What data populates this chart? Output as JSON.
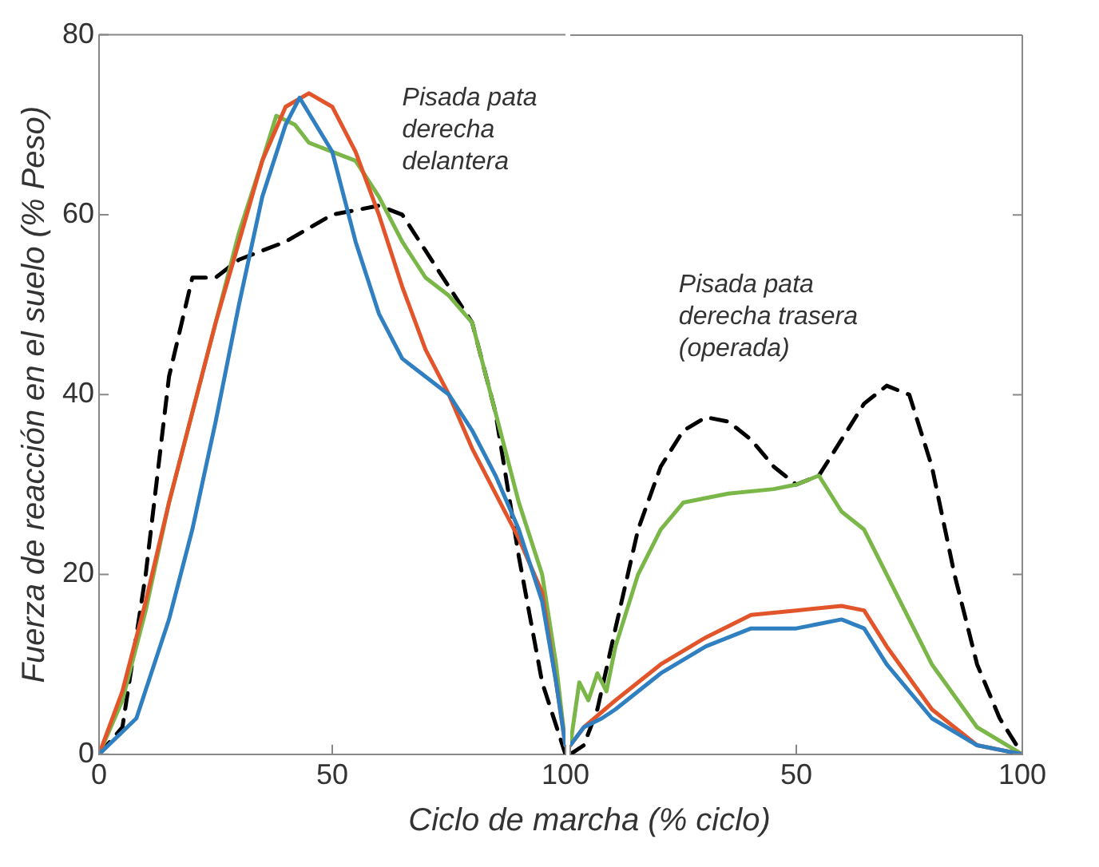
{
  "chart_data": [
    {
      "type": "line",
      "xlabel": "Ciclo de marcha (% ciclo)",
      "ylabel": "Fuerza de reacción en el suelo (% Peso)",
      "xlim": [
        0,
        100
      ],
      "xticks": [
        0,
        50,
        100
      ],
      "ylim": [
        0,
        80
      ],
      "yticks": [
        0,
        20,
        40,
        60,
        80
      ],
      "grid": false,
      "legend": false,
      "marker": "none",
      "annotations": [
        "Pisada pata derecha delantera"
      ],
      "series": [
        {
          "color": "#2f7fc1",
          "line_style": "solid",
          "x": [
            0,
            8,
            15,
            20,
            25,
            30,
            35,
            40,
            43,
            50,
            55,
            60,
            65,
            70,
            75,
            80,
            85,
            90,
            95,
            98,
            100
          ],
          "values": [
            0,
            4,
            15,
            25,
            37,
            50,
            62,
            70,
            73,
            67,
            57,
            49,
            44,
            42,
            40,
            36,
            31,
            25,
            17,
            8,
            1
          ]
        },
        {
          "color": "#e2542a",
          "line_style": "solid",
          "x": [
            0,
            5,
            10,
            15,
            20,
            25,
            30,
            35,
            40,
            45,
            50,
            55,
            60,
            65,
            70,
            75,
            80,
            85,
            90,
            95,
            98,
            100
          ],
          "values": [
            0,
            7,
            17,
            28,
            38,
            48,
            57,
            66,
            72,
            73.5,
            72,
            67,
            60,
            52,
            45,
            40,
            34,
            29,
            24,
            18,
            8,
            1
          ]
        },
        {
          "color": "#7ab648",
          "line_style": "solid",
          "x": [
            0,
            5,
            10,
            15,
            20,
            25,
            30,
            35,
            38,
            42,
            45,
            50,
            55,
            60,
            65,
            70,
            75,
            80,
            85,
            90,
            95,
            98,
            100
          ],
          "values": [
            0,
            6,
            16,
            28,
            38,
            48,
            58,
            66,
            71,
            70,
            68,
            67,
            66,
            62,
            57,
            53,
            51,
            48,
            38,
            28,
            20,
            10,
            1
          ]
        },
        {
          "color": "#000000",
          "line_style": "dashed",
          "x": [
            0,
            5,
            10,
            15,
            20,
            25,
            30,
            40,
            50,
            60,
            65,
            70,
            75,
            80,
            85,
            90,
            95,
            100
          ],
          "values": [
            0,
            3,
            20,
            42,
            53,
            53,
            55,
            57,
            60,
            61,
            60,
            56,
            52,
            48,
            38,
            22,
            8,
            0
          ]
        }
      ]
    },
    {
      "type": "line",
      "xlim": [
        0,
        100
      ],
      "xticks": [
        {
          "value": 0,
          "label": null
        },
        50,
        100
      ],
      "ylim": [
        0,
        80
      ],
      "yticks": [
        {
          "value": 0,
          "label": null
        },
        {
          "value": 20,
          "label": null
        },
        {
          "value": 40,
          "label": null
        },
        {
          "value": 60,
          "label": null
        },
        {
          "value": 80,
          "label": null
        }
      ],
      "tick_labels": "x",
      "grid": false,
      "legend": false,
      "marker": "none",
      "annotations": [
        "Pisada pata derecha trasera (operada)"
      ],
      "series": [
        {
          "color": "#2f7fc1",
          "line_style": "solid",
          "x": [
            0,
            3,
            7,
            10,
            20,
            30,
            40,
            50,
            60,
            65,
            70,
            80,
            90,
            100
          ],
          "values": [
            1,
            3,
            4,
            5,
            9,
            12,
            14,
            14,
            15,
            14,
            10,
            4,
            1,
            0
          ]
        },
        {
          "color": "#e2542a",
          "line_style": "solid",
          "x": [
            0,
            3,
            10,
            20,
            30,
            40,
            50,
            60,
            65,
            70,
            80,
            90,
            100
          ],
          "values": [
            1,
            3,
            6,
            10,
            13,
            15.5,
            16,
            16.5,
            16,
            12,
            5,
            1,
            0
          ]
        },
        {
          "color": "#7ab648",
          "line_style": "solid",
          "x": [
            0,
            2,
            4,
            6,
            8,
            10,
            15,
            20,
            25,
            35,
            45,
            50,
            55,
            60,
            65,
            70,
            80,
            90,
            100
          ],
          "values": [
            1,
            8,
            6,
            9,
            7,
            12,
            20,
            25,
            28,
            29,
            29.5,
            30,
            31,
            27,
            25,
            20,
            10,
            3,
            0
          ]
        },
        {
          "color": "#000000",
          "line_style": "dashed",
          "x": [
            0,
            3,
            6,
            10,
            15,
            20,
            25,
            30,
            35,
            40,
            45,
            50,
            55,
            60,
            65,
            70,
            75,
            80,
            85,
            90,
            95,
            100
          ],
          "values": [
            0,
            1,
            5,
            14,
            25,
            32,
            36,
            37.5,
            37,
            35,
            32,
            30,
            31,
            35,
            39,
            41,
            40,
            32,
            20,
            10,
            4,
            0
          ]
        }
      ]
    }
  ]
}
